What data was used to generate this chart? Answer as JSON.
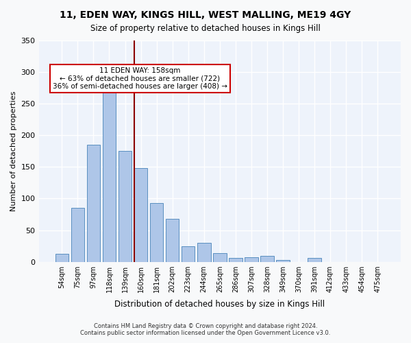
{
  "title": "11, EDEN WAY, KINGS HILL, WEST MALLING, ME19 4GY",
  "subtitle": "Size of property relative to detached houses in Kings Hill",
  "xlabel": "Distribution of detached houses by size in Kings Hill",
  "ylabel": "Number of detached properties",
  "bar_labels": [
    "54sqm",
    "75sqm",
    "97sqm",
    "118sqm",
    "139sqm",
    "160sqm",
    "181sqm",
    "202sqm",
    "223sqm",
    "244sqm",
    "265sqm",
    "286sqm",
    "307sqm",
    "328sqm",
    "349sqm",
    "370sqm",
    "391sqm",
    "412sqm",
    "433sqm",
    "454sqm",
    "475sqm"
  ],
  "bar_values": [
    13,
    85,
    185,
    290,
    175,
    148,
    93,
    68,
    25,
    30,
    14,
    6,
    7,
    9,
    3,
    0,
    6,
    0,
    0,
    0,
    0
  ],
  "bar_color": "#aec6e8",
  "bar_edge_color": "#5a8fc0",
  "property_line_x": 5,
  "property_line_label": "11 EDEN WAY: 158sqm",
  "annotation_line1": "11 EDEN WAY: 158sqm",
  "annotation_line2": "← 63% of detached houses are smaller (722)",
  "annotation_line3": "36% of semi-detached houses are larger (408) →",
  "vline_color": "#8b0000",
  "annotation_box_edge": "#cc0000",
  "bg_color": "#eef3fb",
  "grid_color": "#ffffff",
  "ylim": [
    0,
    350
  ],
  "footer1": "Contains HM Land Registry data © Crown copyright and database right 2024.",
  "footer2": "Contains public sector information licensed under the Open Government Licence v3.0."
}
